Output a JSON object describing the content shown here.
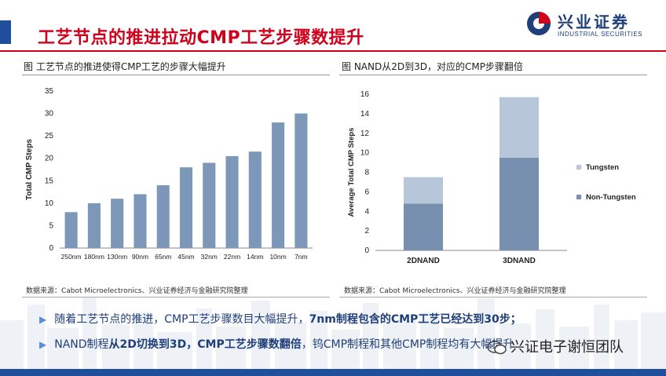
{
  "header": {
    "title": "工艺节点的推进拉动CMP工艺步骤数提升",
    "logo_cn": "兴业证券",
    "logo_en": "INDUSTRIAL SECURITIES",
    "accent": "#d0021b",
    "brand": "#1f4e9c"
  },
  "left_panel": {
    "caption": "图  工艺节点的推进使得CMP工艺的步骤大幅提升",
    "source": "数据来源：Cabot Microelectronics、兴业证券经济与金融研究院整理"
  },
  "right_panel": {
    "caption": "图  NAND从2D到3D，对应的CMP步骤翻倍",
    "source": "数据来源：Cabot Microelectronics、兴业证券经济与金融研究院整理"
  },
  "chart_data": [
    {
      "type": "bar",
      "categories": [
        "250nm",
        "180nm",
        "130nm",
        "90nm",
        "65nm",
        "45nm",
        "32nm",
        "22nm",
        "14nm",
        "10nm",
        "7nm"
      ],
      "values": [
        8,
        10,
        11,
        12,
        14,
        18,
        19,
        20.5,
        21.5,
        28,
        30
      ],
      "ylabel": "Total CMP Steps",
      "ylim": [
        0,
        35
      ],
      "yticks": [
        0,
        5,
        10,
        15,
        20,
        25,
        30,
        35
      ],
      "color": "#7c97b8",
      "grid": false
    },
    {
      "type": "bar",
      "stacked": true,
      "categories": [
        "2DNAND",
        "3DNAND"
      ],
      "series": [
        {
          "name": "Non-Tungsten",
          "values": [
            4.8,
            9.5
          ],
          "color": "#7890b0"
        },
        {
          "name": "Tungsten",
          "values": [
            2.7,
            6.2
          ],
          "color": "#b7c6d8"
        }
      ],
      "ylabel": "Average Total CMP Steps",
      "ylim": [
        0,
        16
      ],
      "yticks": [
        0,
        2,
        4,
        6,
        8,
        10,
        12,
        14,
        16
      ],
      "legend": "right",
      "grid": false
    }
  ],
  "bullets": [
    {
      "pre": "随着工艺节点的推进，CMP工艺步骤数目大幅提升，",
      "bold": "7nm制程包含的CMP工艺已经达到30步；",
      "post": ""
    },
    {
      "pre": "NAND制程",
      "bold": "从2D切换到3D，CMP工艺步骤数翻倍",
      "post": "，钨CMP制程和其他CMP制程均有大幅提升"
    }
  ],
  "watermark": {
    "text": "兴证电子谢恒团队",
    "icon": "wechat-icon"
  }
}
